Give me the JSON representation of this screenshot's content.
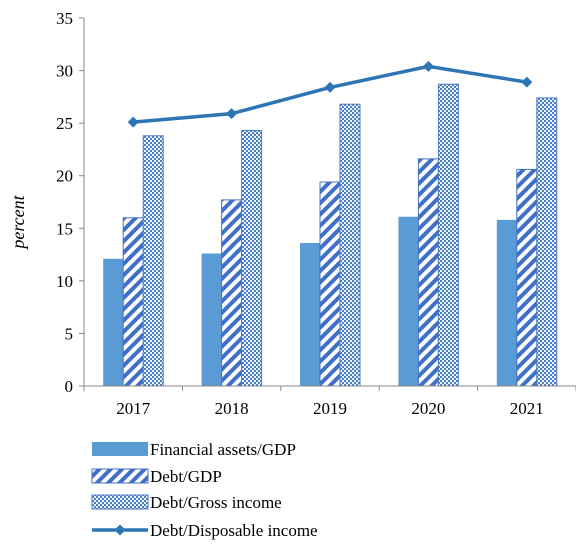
{
  "chart_data": {
    "type": "bar",
    "title": "",
    "xlabel": "",
    "ylabel": "percent",
    "ylim": [
      0,
      35
    ],
    "yticks": [
      0,
      5,
      10,
      15,
      20,
      25,
      30,
      35
    ],
    "grid": false,
    "legend_position": "bottom",
    "categories": [
      "2017",
      "2018",
      "2019",
      "2020",
      "2021"
    ],
    "series": [
      {
        "name": "Financial assets/GDP",
        "kind": "bar",
        "pattern": "solid",
        "color": "#5b9bd5",
        "values": [
          12.1,
          12.6,
          13.6,
          16.1,
          15.8
        ]
      },
      {
        "name": "Debt/GDP",
        "kind": "bar",
        "pattern": "diagonal-stripes",
        "color": "#4472c4",
        "values": [
          16.0,
          17.7,
          19.4,
          21.6,
          20.6
        ]
      },
      {
        "name": "Debt/Gross income",
        "kind": "bar",
        "pattern": "checker",
        "color": "#4a7fc4",
        "values": [
          23.8,
          24.3,
          26.8,
          28.7,
          27.4
        ]
      },
      {
        "name": "Debt/Disposable income",
        "kind": "line",
        "marker": "diamond",
        "color": "#2e75b6",
        "values": [
          25.1,
          25.9,
          28.4,
          30.4,
          28.9
        ]
      }
    ]
  }
}
